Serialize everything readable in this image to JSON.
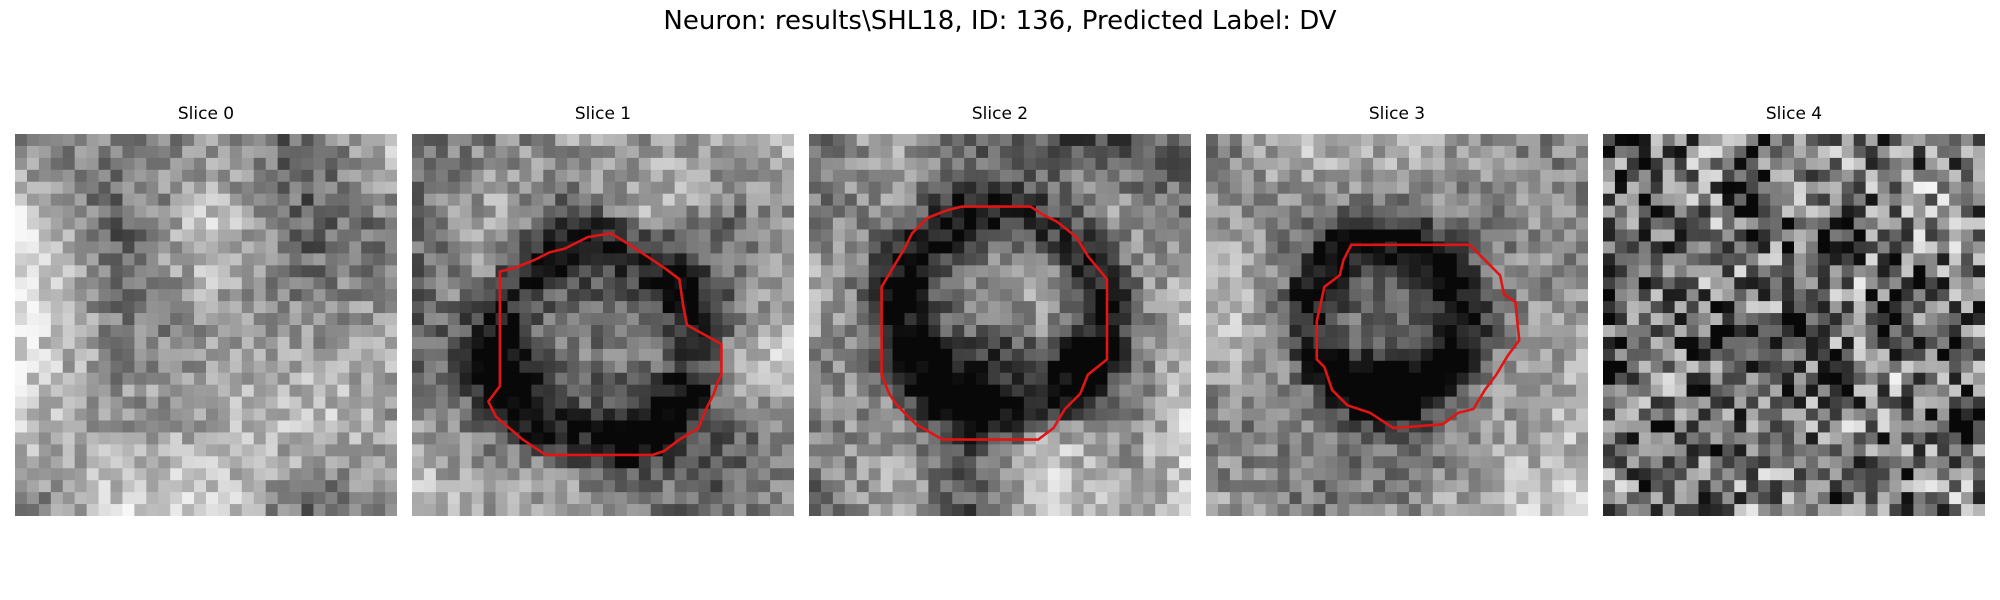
{
  "figure": {
    "title": "Neuron: results\\SHL18, ID: 136, Predicted Label: DV"
  },
  "panels": [
    {
      "title": "Slice 0",
      "has_contour": false
    },
    {
      "title": "Slice 1",
      "has_contour": true
    },
    {
      "title": "Slice 2",
      "has_contour": true
    },
    {
      "title": "Slice 3",
      "has_contour": true
    },
    {
      "title": "Slice 4",
      "has_contour": false
    }
  ],
  "colors": {
    "contour": "#e01515",
    "background": "#ffffff"
  },
  "image_colormap": "grayscale"
}
